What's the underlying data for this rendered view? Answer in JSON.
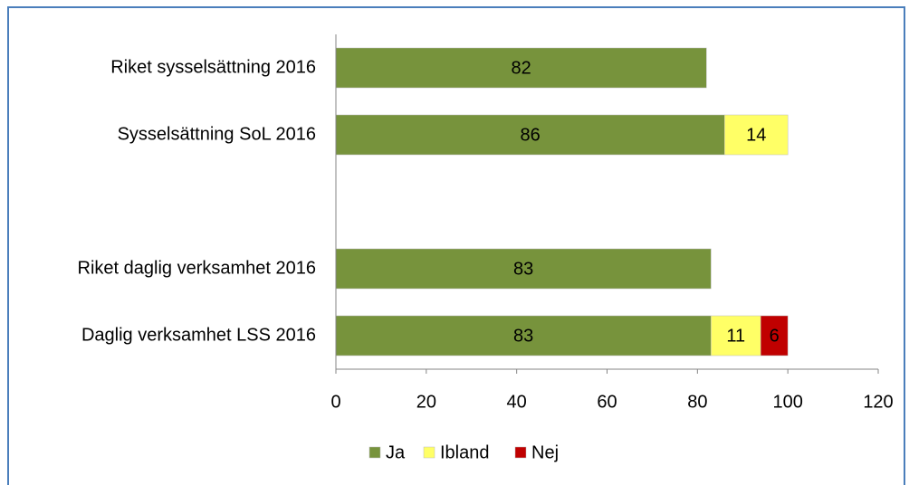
{
  "chart_data": {
    "type": "bar",
    "orientation": "horizontal",
    "stacked": true,
    "categories": [
      "Riket sysselsättning 2016",
      "Sysselsättning SoL 2016",
      null,
      "Riket daglig verksamhet 2016",
      "Daglig verksamhet LSS 2016"
    ],
    "series": [
      {
        "name": "Ja",
        "color": "#77933c",
        "values": [
          82,
          86,
          null,
          83,
          83
        ]
      },
      {
        "name": "Ibland",
        "color": "#ffff66",
        "values": [
          null,
          14,
          null,
          null,
          11
        ]
      },
      {
        "name": "Nej",
        "color": "#c00000",
        "values": [
          null,
          null,
          null,
          null,
          6
        ]
      }
    ],
    "xlim": [
      0,
      120
    ],
    "xticks": [
      0,
      20,
      40,
      60,
      80,
      100,
      120
    ],
    "legend": "bottom"
  }
}
